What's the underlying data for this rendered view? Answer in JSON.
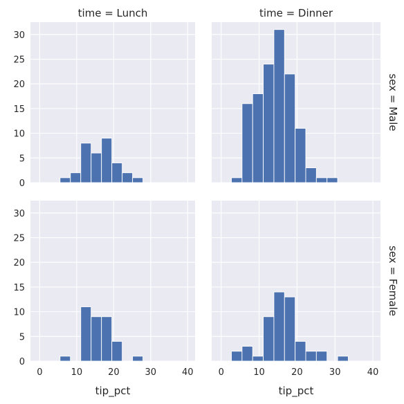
{
  "chart_data": {
    "type": "bar",
    "grid": true,
    "x_ticks": [
      0,
      10,
      20,
      30,
      40
    ],
    "y_ticks": [
      0,
      5,
      10,
      15,
      20,
      25,
      30
    ],
    "xlim": [
      -2.5,
      42
    ],
    "ylim": [
      0,
      32.5
    ],
    "bins": [
      [
        5.5,
        8.3
      ],
      [
        8.3,
        11.1
      ],
      [
        11.1,
        13.9
      ],
      [
        13.9,
        16.7
      ],
      [
        16.7,
        19.5
      ],
      [
        19.5,
        22.3
      ],
      [
        22.3,
        25.1
      ],
      [
        25.1,
        27.9
      ],
      [
        27.9,
        30.7
      ],
      [
        30.7,
        33.5
      ],
      [
        33.5,
        36.3
      ],
      [
        36.3,
        39.1
      ]
    ],
    "xlabel": "tip_pct",
    "facets": [
      {
        "id": "lunch-male",
        "col_title": "time = Lunch",
        "row_title": "",
        "bins": [
          [
            5.5,
            8.3
          ],
          [
            8.3,
            11.1
          ],
          [
            11.1,
            13.9
          ],
          [
            13.9,
            16.7
          ],
          [
            16.7,
            19.5
          ],
          [
            19.5,
            22.3
          ],
          [
            22.3,
            25.1
          ],
          [
            25.1,
            27.9
          ]
        ],
        "values": [
          1,
          2,
          8,
          6,
          9,
          4,
          2,
          1
        ]
      },
      {
        "id": "dinner-male",
        "col_title": "time = Dinner",
        "row_title": "sex = Male",
        "bins": [
          [
            2.7,
            5.5
          ],
          [
            5.5,
            8.3
          ],
          [
            8.3,
            11.1
          ],
          [
            11.1,
            13.9
          ],
          [
            13.9,
            16.7
          ],
          [
            16.7,
            19.5
          ],
          [
            19.5,
            22.3
          ],
          [
            22.3,
            25.1
          ],
          [
            25.1,
            27.9
          ],
          [
            27.9,
            30.7
          ]
        ],
        "values": [
          1,
          16,
          18,
          24,
          31,
          22,
          11,
          3,
          1,
          1
        ]
      },
      {
        "id": "lunch-female",
        "col_title": "",
        "row_title": "",
        "bins": [
          [
            5.5,
            8.3
          ],
          [
            8.3,
            11.1
          ],
          [
            11.1,
            13.9
          ],
          [
            13.9,
            16.7
          ],
          [
            16.7,
            19.5
          ],
          [
            19.5,
            22.3
          ],
          [
            22.3,
            25.1
          ],
          [
            25.1,
            27.9
          ]
        ],
        "values": [
          1,
          0,
          11,
          9,
          9,
          4,
          0,
          1
        ]
      },
      {
        "id": "dinner-female",
        "col_title": "",
        "row_title": "sex = Female",
        "bins": [
          [
            2.7,
            5.5
          ],
          [
            5.5,
            8.3
          ],
          [
            8.3,
            11.1
          ],
          [
            11.1,
            13.9
          ],
          [
            13.9,
            16.7
          ],
          [
            16.7,
            19.5
          ],
          [
            19.5,
            22.3
          ],
          [
            22.3,
            25.1
          ],
          [
            25.1,
            27.9
          ],
          [
            27.9,
            30.7
          ],
          [
            30.7,
            33.5
          ]
        ],
        "values": [
          2,
          3,
          1,
          9,
          14,
          13,
          4,
          2,
          2,
          0,
          1
        ]
      }
    ]
  }
}
